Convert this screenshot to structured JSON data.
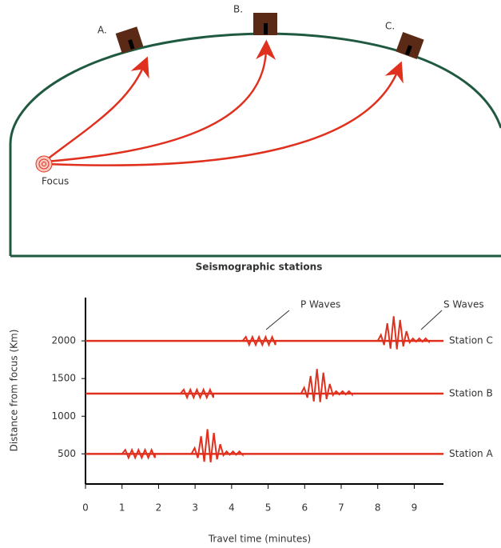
{
  "diagram": {
    "stations": [
      "A.",
      "B.",
      "C."
    ],
    "focus_label": "Focus",
    "caption": "Seismographic stations"
  },
  "chart_data": {
    "type": "seismogram",
    "ylabel": "Distance from focus (Km)",
    "xlabel": "Travel time  (minutes)",
    "xlim": [
      0,
      9.8
    ],
    "xticks": [
      0,
      1,
      2,
      3,
      4,
      5,
      6,
      7,
      8,
      9
    ],
    "ylim": [
      100,
      2500
    ],
    "yticks": [
      500,
      1000,
      1500,
      2000
    ],
    "color": "#e0301e",
    "annotations": [
      "P Waves",
      "S Waves"
    ],
    "series": [
      {
        "name": "Station A",
        "distance": 500,
        "p_wave": [
          1.0,
          1.9
        ],
        "s_wave": [
          2.9,
          4.3
        ]
      },
      {
        "name": "Station B",
        "distance": 1300,
        "p_wave": [
          2.6,
          3.5
        ],
        "s_wave": [
          5.9,
          7.3
        ]
      },
      {
        "name": "Station C",
        "distance": 2000,
        "p_wave": [
          4.3,
          5.2
        ],
        "s_wave": [
          8.0,
          9.4
        ]
      }
    ]
  }
}
